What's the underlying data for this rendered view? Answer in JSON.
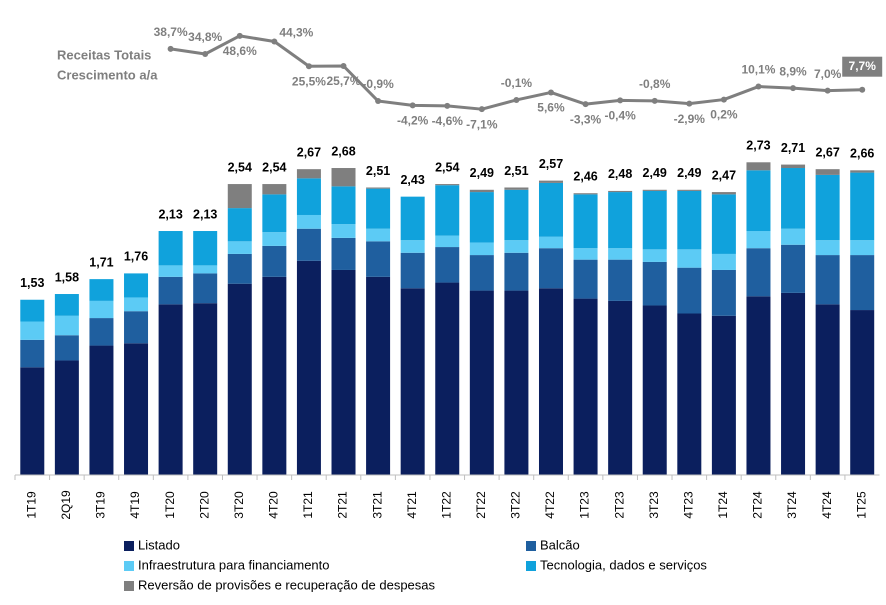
{
  "chart_data": {
    "type": "bar",
    "stacked": true,
    "line_title": [
      "Receitas Totais",
      "Crescimento a/a"
    ],
    "categories": [
      "1T19",
      "2Q19",
      "3T19",
      "4T19",
      "1T20",
      "2T20",
      "3T20",
      "4T20",
      "1T21",
      "2T21",
      "3T21",
      "4T21",
      "1T22",
      "2T22",
      "3T22",
      "4T22",
      "1T23",
      "2T23",
      "3T23",
      "4T23",
      "1T24",
      "2T24",
      "3T24",
      "4T24",
      "1T25"
    ],
    "ylim": [
      0,
      3.3
    ],
    "y2lim": [
      -10,
      50
    ],
    "totals": [
      1.53,
      1.58,
      1.71,
      1.76,
      2.13,
      2.13,
      2.54,
      2.54,
      2.67,
      2.68,
      2.51,
      2.43,
      2.54,
      2.49,
      2.51,
      2.57,
      2.46,
      2.48,
      2.49,
      2.49,
      2.47,
      2.73,
      2.71,
      2.67,
      2.66
    ],
    "totals_labels": [
      "1,53",
      "1,58",
      "1,71",
      "1,76",
      "2,13",
      "2,13",
      "2,54",
      "2,54",
      "2,67",
      "2,68",
      "2,51",
      "2,43",
      "2,54",
      "2,49",
      "2,51",
      "2,57",
      "2,46",
      "2,48",
      "2,49",
      "2,49",
      "2,47",
      "2,73",
      "2,71",
      "2,67",
      "2,66"
    ],
    "series": [
      {
        "name": "Listado",
        "color": "#0b1f5e",
        "values": [
          0.94,
          1.0,
          1.13,
          1.15,
          1.49,
          1.5,
          1.67,
          1.73,
          1.87,
          1.79,
          1.73,
          1.63,
          1.68,
          1.61,
          1.61,
          1.63,
          1.54,
          1.52,
          1.48,
          1.41,
          1.39,
          1.56,
          1.59,
          1.49,
          1.44
        ]
      },
      {
        "name": "Balcão",
        "color": "#1f5f9f",
        "values": [
          0.24,
          0.22,
          0.24,
          0.28,
          0.24,
          0.26,
          0.26,
          0.27,
          0.28,
          0.28,
          0.31,
          0.31,
          0.31,
          0.31,
          0.33,
          0.35,
          0.34,
          0.36,
          0.38,
          0.4,
          0.4,
          0.42,
          0.42,
          0.43,
          0.48
        ]
      },
      {
        "name": "Infraestrutura para financiamento",
        "color": "#5ccbf5",
        "values": [
          0.16,
          0.17,
          0.15,
          0.12,
          0.1,
          0.07,
          0.11,
          0.12,
          0.12,
          0.12,
          0.11,
          0.11,
          0.1,
          0.11,
          0.11,
          0.1,
          0.1,
          0.1,
          0.11,
          0.16,
          0.14,
          0.15,
          0.14,
          0.13,
          0.13
        ]
      },
      {
        "name": "Tecnologia, dados e serviços",
        "color": "#10a2dc",
        "values": [
          0.19,
          0.19,
          0.19,
          0.21,
          0.3,
          0.3,
          0.29,
          0.33,
          0.32,
          0.33,
          0.35,
          0.38,
          0.44,
          0.44,
          0.44,
          0.47,
          0.47,
          0.49,
          0.51,
          0.51,
          0.52,
          0.53,
          0.53,
          0.57,
          0.59
        ]
      },
      {
        "name": "Reversão de provisões e recuperação de despesas",
        "color": "#7f7f7f",
        "values": [
          0,
          0,
          0,
          0,
          0,
          0,
          0.21,
          0.09,
          0.08,
          0.16,
          0.01,
          0,
          0.01,
          0.02,
          0.02,
          0.02,
          0.01,
          0.01,
          0.01,
          0.01,
          0.02,
          0.07,
          0.03,
          0.05,
          0.02
        ]
      },
      {
        "type": "line",
        "axis": "y2",
        "color": "#7f7f7f",
        "values": [
          null,
          null,
          null,
          null,
          38.7,
          34.8,
          48.6,
          44.3,
          25.5,
          25.7,
          -0.9,
          -4.2,
          -4.6,
          -7.1,
          -0.1,
          5.6,
          -3.3,
          -0.4,
          -0.8,
          -2.9,
          0.2,
          10.1,
          8.9,
          7.0,
          7.7
        ],
        "value_labels": [
          null,
          null,
          null,
          null,
          "38,7%",
          "34,8%",
          "48,6%",
          "44,3%",
          "25,5%",
          "25,7%",
          "-0,9%",
          "-4,2%",
          "-4,6%",
          "-7,1%",
          "-0,1%",
          "5,6%",
          "-3,3%",
          "-0,4%",
          "-0,8%",
          "-2,9%",
          "0,2%",
          "10,1%",
          "8,9%",
          "7,0%",
          "7,7%"
        ]
      }
    ]
  }
}
